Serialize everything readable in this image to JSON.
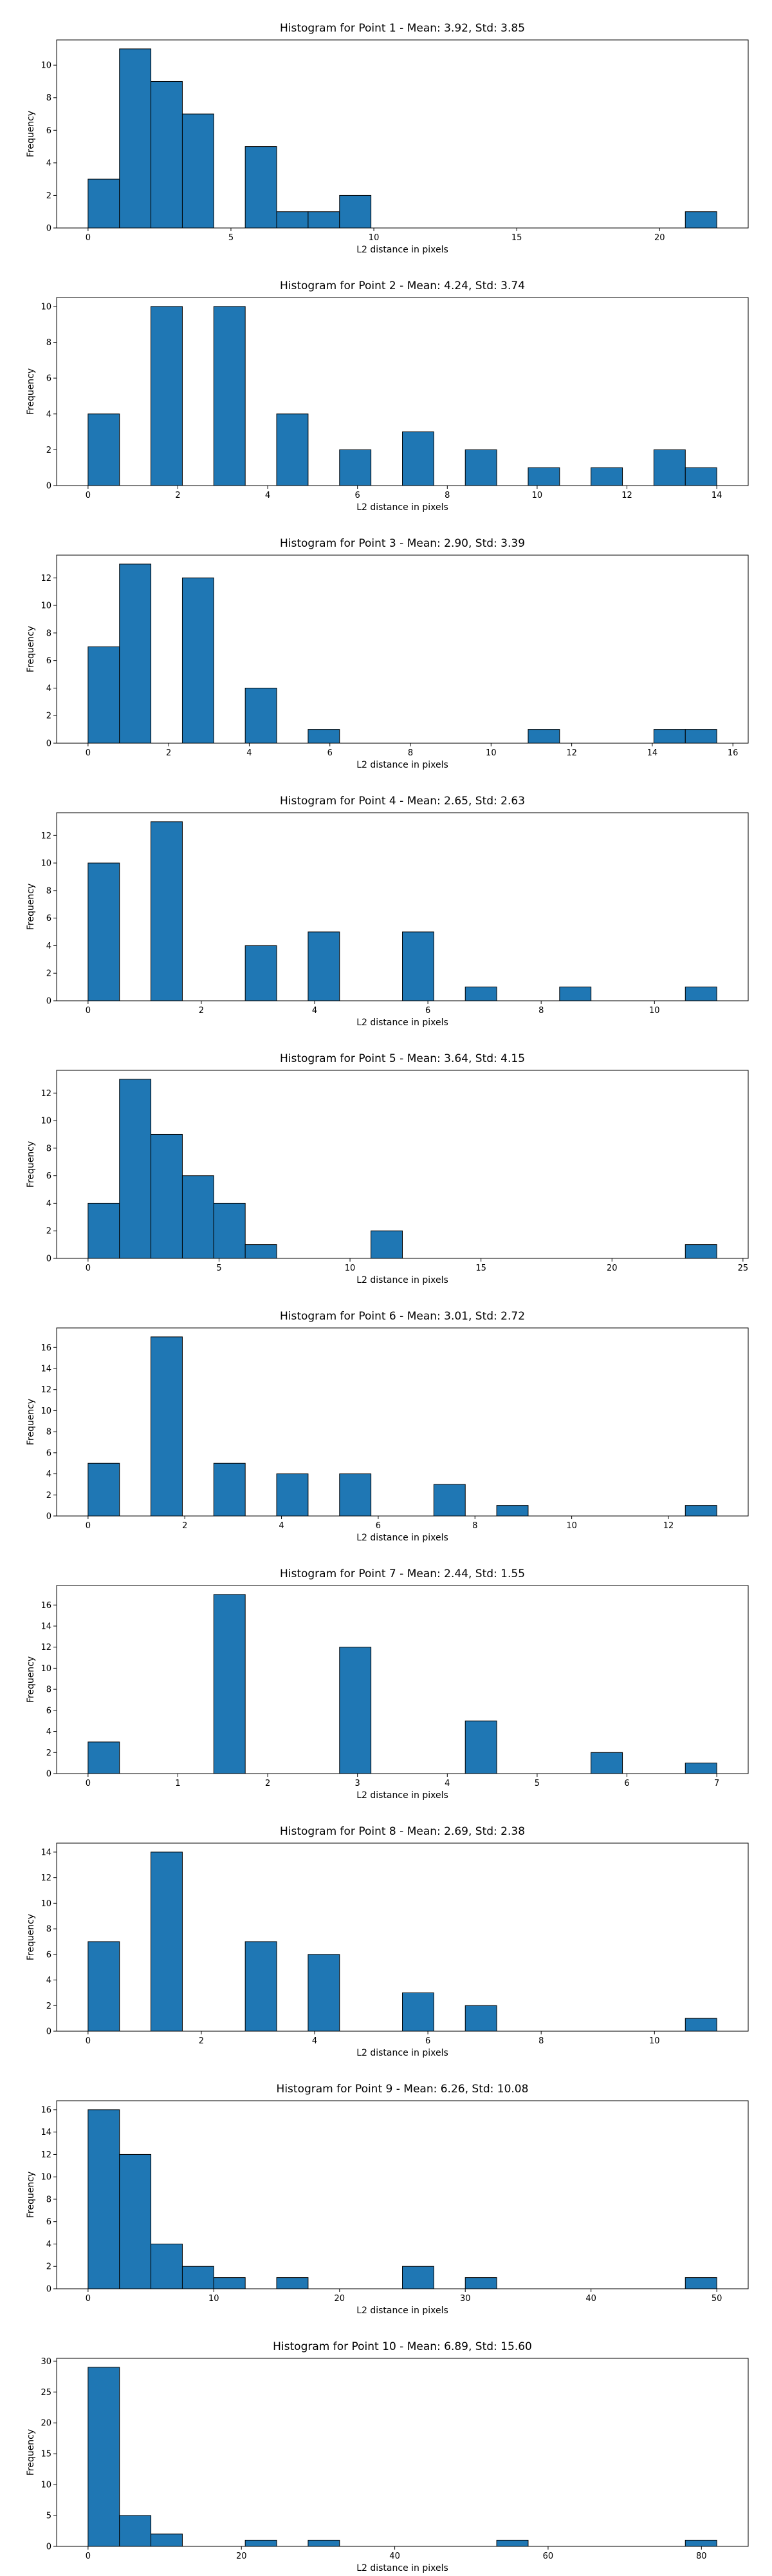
{
  "chart_data": [
    {
      "type": "bar",
      "title": "Histogram for Point 1 - Mean: 3.92, Std: 3.85",
      "xlabel": "L2 distance in pixels",
      "ylabel": "Frequency",
      "xlim": [
        -1.1,
        23.1
      ],
      "ylim": [
        0,
        11.55
      ],
      "xticks": [
        0,
        5,
        10,
        15,
        20
      ],
      "yticks": [
        0,
        2,
        4,
        6,
        8,
        10
      ],
      "bins": [
        {
          "x0": 0.0,
          "x1": 1.1,
          "count": 3
        },
        {
          "x0": 1.1,
          "x1": 2.2,
          "count": 11
        },
        {
          "x0": 2.2,
          "x1": 3.3,
          "count": 9
        },
        {
          "x0": 3.3,
          "x1": 4.4,
          "count": 7
        },
        {
          "x0": 5.5,
          "x1": 6.6,
          "count": 5
        },
        {
          "x0": 6.6,
          "x1": 7.7,
          "count": 1
        },
        {
          "x0": 7.7,
          "x1": 8.8,
          "count": 1
        },
        {
          "x0": 8.8,
          "x1": 9.9,
          "count": 2
        },
        {
          "x0": 20.9,
          "x1": 22.0,
          "count": 1
        }
      ],
      "grid": false
    },
    {
      "type": "bar",
      "title": "Histogram for Point 2 - Mean: 4.24, Std: 3.74",
      "xlabel": "L2 distance in pixels",
      "ylabel": "Frequency",
      "xlim": [
        -0.7,
        14.7
      ],
      "ylim": [
        0,
        10.5
      ],
      "xticks": [
        0,
        2,
        4,
        6,
        8,
        10,
        12,
        14
      ],
      "yticks": [
        0,
        2,
        4,
        6,
        8,
        10
      ],
      "bins": [
        {
          "x0": 0.0,
          "x1": 0.7,
          "count": 4
        },
        {
          "x0": 1.4,
          "x1": 2.1,
          "count": 10
        },
        {
          "x0": 2.8,
          "x1": 3.5,
          "count": 10
        },
        {
          "x0": 4.2,
          "x1": 4.9,
          "count": 4
        },
        {
          "x0": 5.6,
          "x1": 6.3,
          "count": 2
        },
        {
          "x0": 7.0,
          "x1": 7.7,
          "count": 3
        },
        {
          "x0": 8.4,
          "x1": 9.1,
          "count": 2
        },
        {
          "x0": 9.8,
          "x1": 10.5,
          "count": 1
        },
        {
          "x0": 11.2,
          "x1": 11.9,
          "count": 1
        },
        {
          "x0": 12.6,
          "x1": 13.3,
          "count": 2
        },
        {
          "x0": 13.3,
          "x1": 14.0,
          "count": 1
        }
      ],
      "grid": false
    },
    {
      "type": "bar",
      "title": "Histogram for Point 3 - Mean: 2.90, Std: 3.39",
      "xlabel": "L2 distance in pixels",
      "ylabel": "Frequency",
      "xlim": [
        -0.78,
        16.38
      ],
      "ylim": [
        0,
        13.65
      ],
      "xticks": [
        0,
        2,
        4,
        6,
        8,
        10,
        12,
        14,
        16
      ],
      "yticks": [
        0,
        2,
        4,
        6,
        8,
        10,
        12
      ],
      "bins": [
        {
          "x0": 0.0,
          "x1": 0.78,
          "count": 7
        },
        {
          "x0": 0.78,
          "x1": 1.56,
          "count": 13
        },
        {
          "x0": 2.34,
          "x1": 3.12,
          "count": 12
        },
        {
          "x0": 3.9,
          "x1": 4.68,
          "count": 4
        },
        {
          "x0": 5.46,
          "x1": 6.24,
          "count": 1
        },
        {
          "x0": 10.92,
          "x1": 11.7,
          "count": 1
        },
        {
          "x0": 14.04,
          "x1": 14.82,
          "count": 1
        },
        {
          "x0": 14.82,
          "x1": 15.6,
          "count": 1
        }
      ],
      "grid": false
    },
    {
      "type": "bar",
      "title": "Histogram for Point 4 - Mean: 2.65, Std: 2.63",
      "xlabel": "L2 distance in pixels",
      "ylabel": "Frequency",
      "xlim": [
        -0.555,
        11.655
      ],
      "ylim": [
        0,
        13.65
      ],
      "xticks": [
        0,
        2,
        4,
        6,
        8,
        10
      ],
      "yticks": [
        0,
        2,
        4,
        6,
        8,
        10,
        12
      ],
      "bins": [
        {
          "x0": 0.0,
          "x1": 0.555,
          "count": 10
        },
        {
          "x0": 1.11,
          "x1": 1.665,
          "count": 13
        },
        {
          "x0": 2.775,
          "x1": 3.33,
          "count": 4
        },
        {
          "x0": 3.885,
          "x1": 4.44,
          "count": 5
        },
        {
          "x0": 5.55,
          "x1": 6.105,
          "count": 5
        },
        {
          "x0": 6.66,
          "x1": 7.215,
          "count": 1
        },
        {
          "x0": 8.325,
          "x1": 8.88,
          "count": 1
        },
        {
          "x0": 10.545,
          "x1": 11.1,
          "count": 1
        }
      ],
      "grid": false
    },
    {
      "type": "bar",
      "title": "Histogram for Point 5 - Mean: 3.64, Std: 4.15",
      "xlabel": "L2 distance in pixels",
      "ylabel": "Frequency",
      "xlim": [
        -1.2,
        25.2
      ],
      "ylim": [
        0,
        13.65
      ],
      "xticks": [
        0,
        5,
        10,
        15,
        20,
        25
      ],
      "yticks": [
        0,
        2,
        4,
        6,
        8,
        10,
        12
      ],
      "bins": [
        {
          "x0": 0.0,
          "x1": 1.2,
          "count": 4
        },
        {
          "x0": 1.2,
          "x1": 2.4,
          "count": 13
        },
        {
          "x0": 2.4,
          "x1": 3.6,
          "count": 9
        },
        {
          "x0": 3.6,
          "x1": 4.8,
          "count": 6
        },
        {
          "x0": 4.8,
          "x1": 6.0,
          "count": 4
        },
        {
          "x0": 6.0,
          "x1": 7.2,
          "count": 1
        },
        {
          "x0": 10.8,
          "x1": 12.0,
          "count": 2
        },
        {
          "x0": 22.8,
          "x1": 24.0,
          "count": 1
        }
      ],
      "grid": false
    },
    {
      "type": "bar",
      "title": "Histogram for Point 6 - Mean: 3.01, Std: 2.72",
      "xlabel": "L2 distance in pixels",
      "ylabel": "Frequency",
      "xlim": [
        -0.65,
        13.65
      ],
      "ylim": [
        0,
        17.85
      ],
      "xticks": [
        0,
        2,
        4,
        6,
        8,
        10,
        12
      ],
      "yticks": [
        0,
        2,
        4,
        6,
        8,
        10,
        12,
        14,
        16
      ],
      "bins": [
        {
          "x0": 0.0,
          "x1": 0.65,
          "count": 5
        },
        {
          "x0": 1.3,
          "x1": 1.95,
          "count": 17
        },
        {
          "x0": 2.6,
          "x1": 3.25,
          "count": 5
        },
        {
          "x0": 3.9,
          "x1": 4.55,
          "count": 4
        },
        {
          "x0": 5.2,
          "x1": 5.85,
          "count": 4
        },
        {
          "x0": 7.15,
          "x1": 7.8,
          "count": 3
        },
        {
          "x0": 8.45,
          "x1": 9.1,
          "count": 1
        },
        {
          "x0": 12.35,
          "x1": 13.0,
          "count": 1
        }
      ],
      "grid": false
    },
    {
      "type": "bar",
      "title": "Histogram for Point 7 - Mean: 2.44, Std: 1.55",
      "xlabel": "L2 distance in pixels",
      "ylabel": "Frequency",
      "xlim": [
        -0.35,
        7.35
      ],
      "ylim": [
        0,
        17.85
      ],
      "xticks": [
        0,
        1,
        2,
        3,
        4,
        5,
        6,
        7
      ],
      "yticks": [
        0,
        2,
        4,
        6,
        8,
        10,
        12,
        14,
        16
      ],
      "bins": [
        {
          "x0": 0.0,
          "x1": 0.35,
          "count": 3
        },
        {
          "x0": 1.4,
          "x1": 1.75,
          "count": 17
        },
        {
          "x0": 2.8,
          "x1": 3.15,
          "count": 12
        },
        {
          "x0": 4.2,
          "x1": 4.55,
          "count": 5
        },
        {
          "x0": 5.6,
          "x1": 5.95,
          "count": 2
        },
        {
          "x0": 6.65,
          "x1": 7.0,
          "count": 1
        }
      ],
      "grid": false
    },
    {
      "type": "bar",
      "title": "Histogram for Point 8 - Mean: 2.69, Std: 2.38",
      "xlabel": "L2 distance in pixels",
      "ylabel": "Frequency",
      "xlim": [
        -0.555,
        11.655
      ],
      "ylim": [
        0,
        14.7
      ],
      "xticks": [
        0,
        2,
        4,
        6,
        8,
        10
      ],
      "yticks": [
        0,
        2,
        4,
        6,
        8,
        10,
        12,
        14
      ],
      "bins": [
        {
          "x0": 0.0,
          "x1": 0.555,
          "count": 7
        },
        {
          "x0": 1.11,
          "x1": 1.665,
          "count": 14
        },
        {
          "x0": 2.775,
          "x1": 3.33,
          "count": 7
        },
        {
          "x0": 3.885,
          "x1": 4.44,
          "count": 6
        },
        {
          "x0": 5.55,
          "x1": 6.105,
          "count": 3
        },
        {
          "x0": 6.66,
          "x1": 7.215,
          "count": 2
        },
        {
          "x0": 10.545,
          "x1": 11.1,
          "count": 1
        }
      ],
      "grid": false
    },
    {
      "type": "bar",
      "title": "Histogram for Point 9 - Mean: 6.26, Std: 10.08",
      "xlabel": "L2 distance in pixels",
      "ylabel": "Frequency",
      "xlim": [
        -2.5,
        52.5
      ],
      "ylim": [
        0,
        16.8
      ],
      "xticks": [
        0,
        10,
        20,
        30,
        40,
        50
      ],
      "yticks": [
        0,
        2,
        4,
        6,
        8,
        10,
        12,
        14,
        16
      ],
      "bins": [
        {
          "x0": 0.0,
          "x1": 2.5,
          "count": 16
        },
        {
          "x0": 2.5,
          "x1": 5.0,
          "count": 12
        },
        {
          "x0": 5.0,
          "x1": 7.5,
          "count": 4
        },
        {
          "x0": 7.5,
          "x1": 10.0,
          "count": 2
        },
        {
          "x0": 10.0,
          "x1": 12.5,
          "count": 1
        },
        {
          "x0": 15.0,
          "x1": 17.5,
          "count": 1
        },
        {
          "x0": 25.0,
          "x1": 27.5,
          "count": 2
        },
        {
          "x0": 30.0,
          "x1": 32.5,
          "count": 1
        },
        {
          "x0": 47.5,
          "x1": 50.0,
          "count": 1
        }
      ],
      "grid": false
    },
    {
      "type": "bar",
      "title": "Histogram for Point 10 - Mean: 6.89, Std: 15.60",
      "xlabel": "L2 distance in pixels",
      "ylabel": "Frequency",
      "xlim": [
        -4.1,
        86.1
      ],
      "ylim": [
        0,
        30.45
      ],
      "xticks": [
        0,
        20,
        40,
        60,
        80
      ],
      "yticks": [
        0,
        5,
        10,
        15,
        20,
        25,
        30
      ],
      "bins": [
        {
          "x0": 0.0,
          "x1": 4.1,
          "count": 29
        },
        {
          "x0": 4.1,
          "x1": 8.2,
          "count": 5
        },
        {
          "x0": 8.2,
          "x1": 12.3,
          "count": 2
        },
        {
          "x0": 20.5,
          "x1": 24.6,
          "count": 1
        },
        {
          "x0": 28.7,
          "x1": 32.8,
          "count": 1
        },
        {
          "x0": 53.3,
          "x1": 57.4,
          "count": 1
        },
        {
          "x0": 77.9,
          "x1": 82.0,
          "count": 1
        }
      ],
      "grid": false
    }
  ]
}
